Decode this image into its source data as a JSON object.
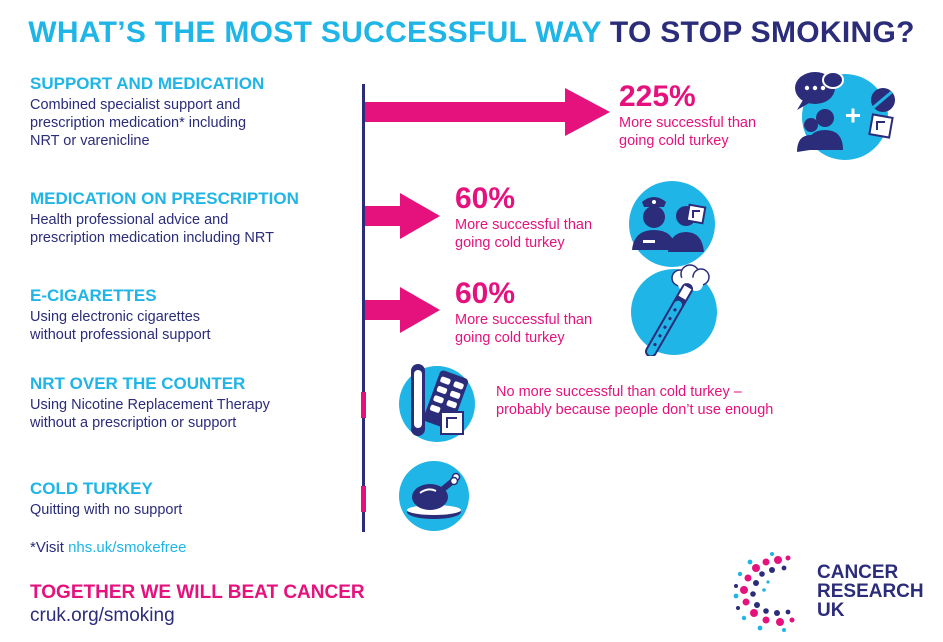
{
  "title": {
    "part1": "WHAT’S THE MOST SUCCESSFUL WAY",
    "part2": "TO STOP SMOKING?"
  },
  "methods": [
    {
      "heading": "SUPPORT AND MEDICATION",
      "desc_lines": [
        "Combined specialist support and",
        "prescription medication* including",
        "NRT or varenicline"
      ],
      "result_pct": "225%",
      "result_lines": [
        "More successful than",
        "going cold turkey"
      ],
      "icon": "support-and-medication-icon"
    },
    {
      "heading": "MEDICATION ON PRESCRIPTION",
      "desc_lines": [
        "Health professional advice and",
        "prescription medication including NRT"
      ],
      "result_pct": "60%",
      "result_lines": [
        "More successful than",
        "going cold turkey"
      ],
      "icon": "health-professional-icon"
    },
    {
      "heading": "E-CIGARETTES",
      "desc_lines": [
        "Using electronic cigarettes",
        "without professional support"
      ],
      "result_pct": "60%",
      "result_lines": [
        "More successful than",
        "going cold turkey"
      ],
      "icon": "e-cigarette-icon"
    },
    {
      "heading": "NRT OVER THE COUNTER",
      "desc_lines": [
        "Using Nicotine Replacement Therapy",
        "without a prescription or support"
      ],
      "result_lines": [
        "No more successful than cold turkey –",
        "probably because people don’t use enough"
      ],
      "icon": "nrt-products-icon"
    },
    {
      "heading": "COLD TURKEY",
      "desc_lines": [
        "Quitting with no support"
      ],
      "icon": "roast-turkey-icon"
    }
  ],
  "note": {
    "prefix": "*Visit ",
    "link": "nhs.uk/smokefree"
  },
  "footer": {
    "tagline": "TOGETHER WE WILL BEAT CANCER",
    "url": "cruk.org/smoking"
  },
  "logo": {
    "line1": "CANCER",
    "line2": "RESEARCH",
    "line3": "UK"
  },
  "colors": {
    "cyan": "#1fb5e6",
    "navy": "#2b2c7a",
    "pink": "#e5127d"
  }
}
